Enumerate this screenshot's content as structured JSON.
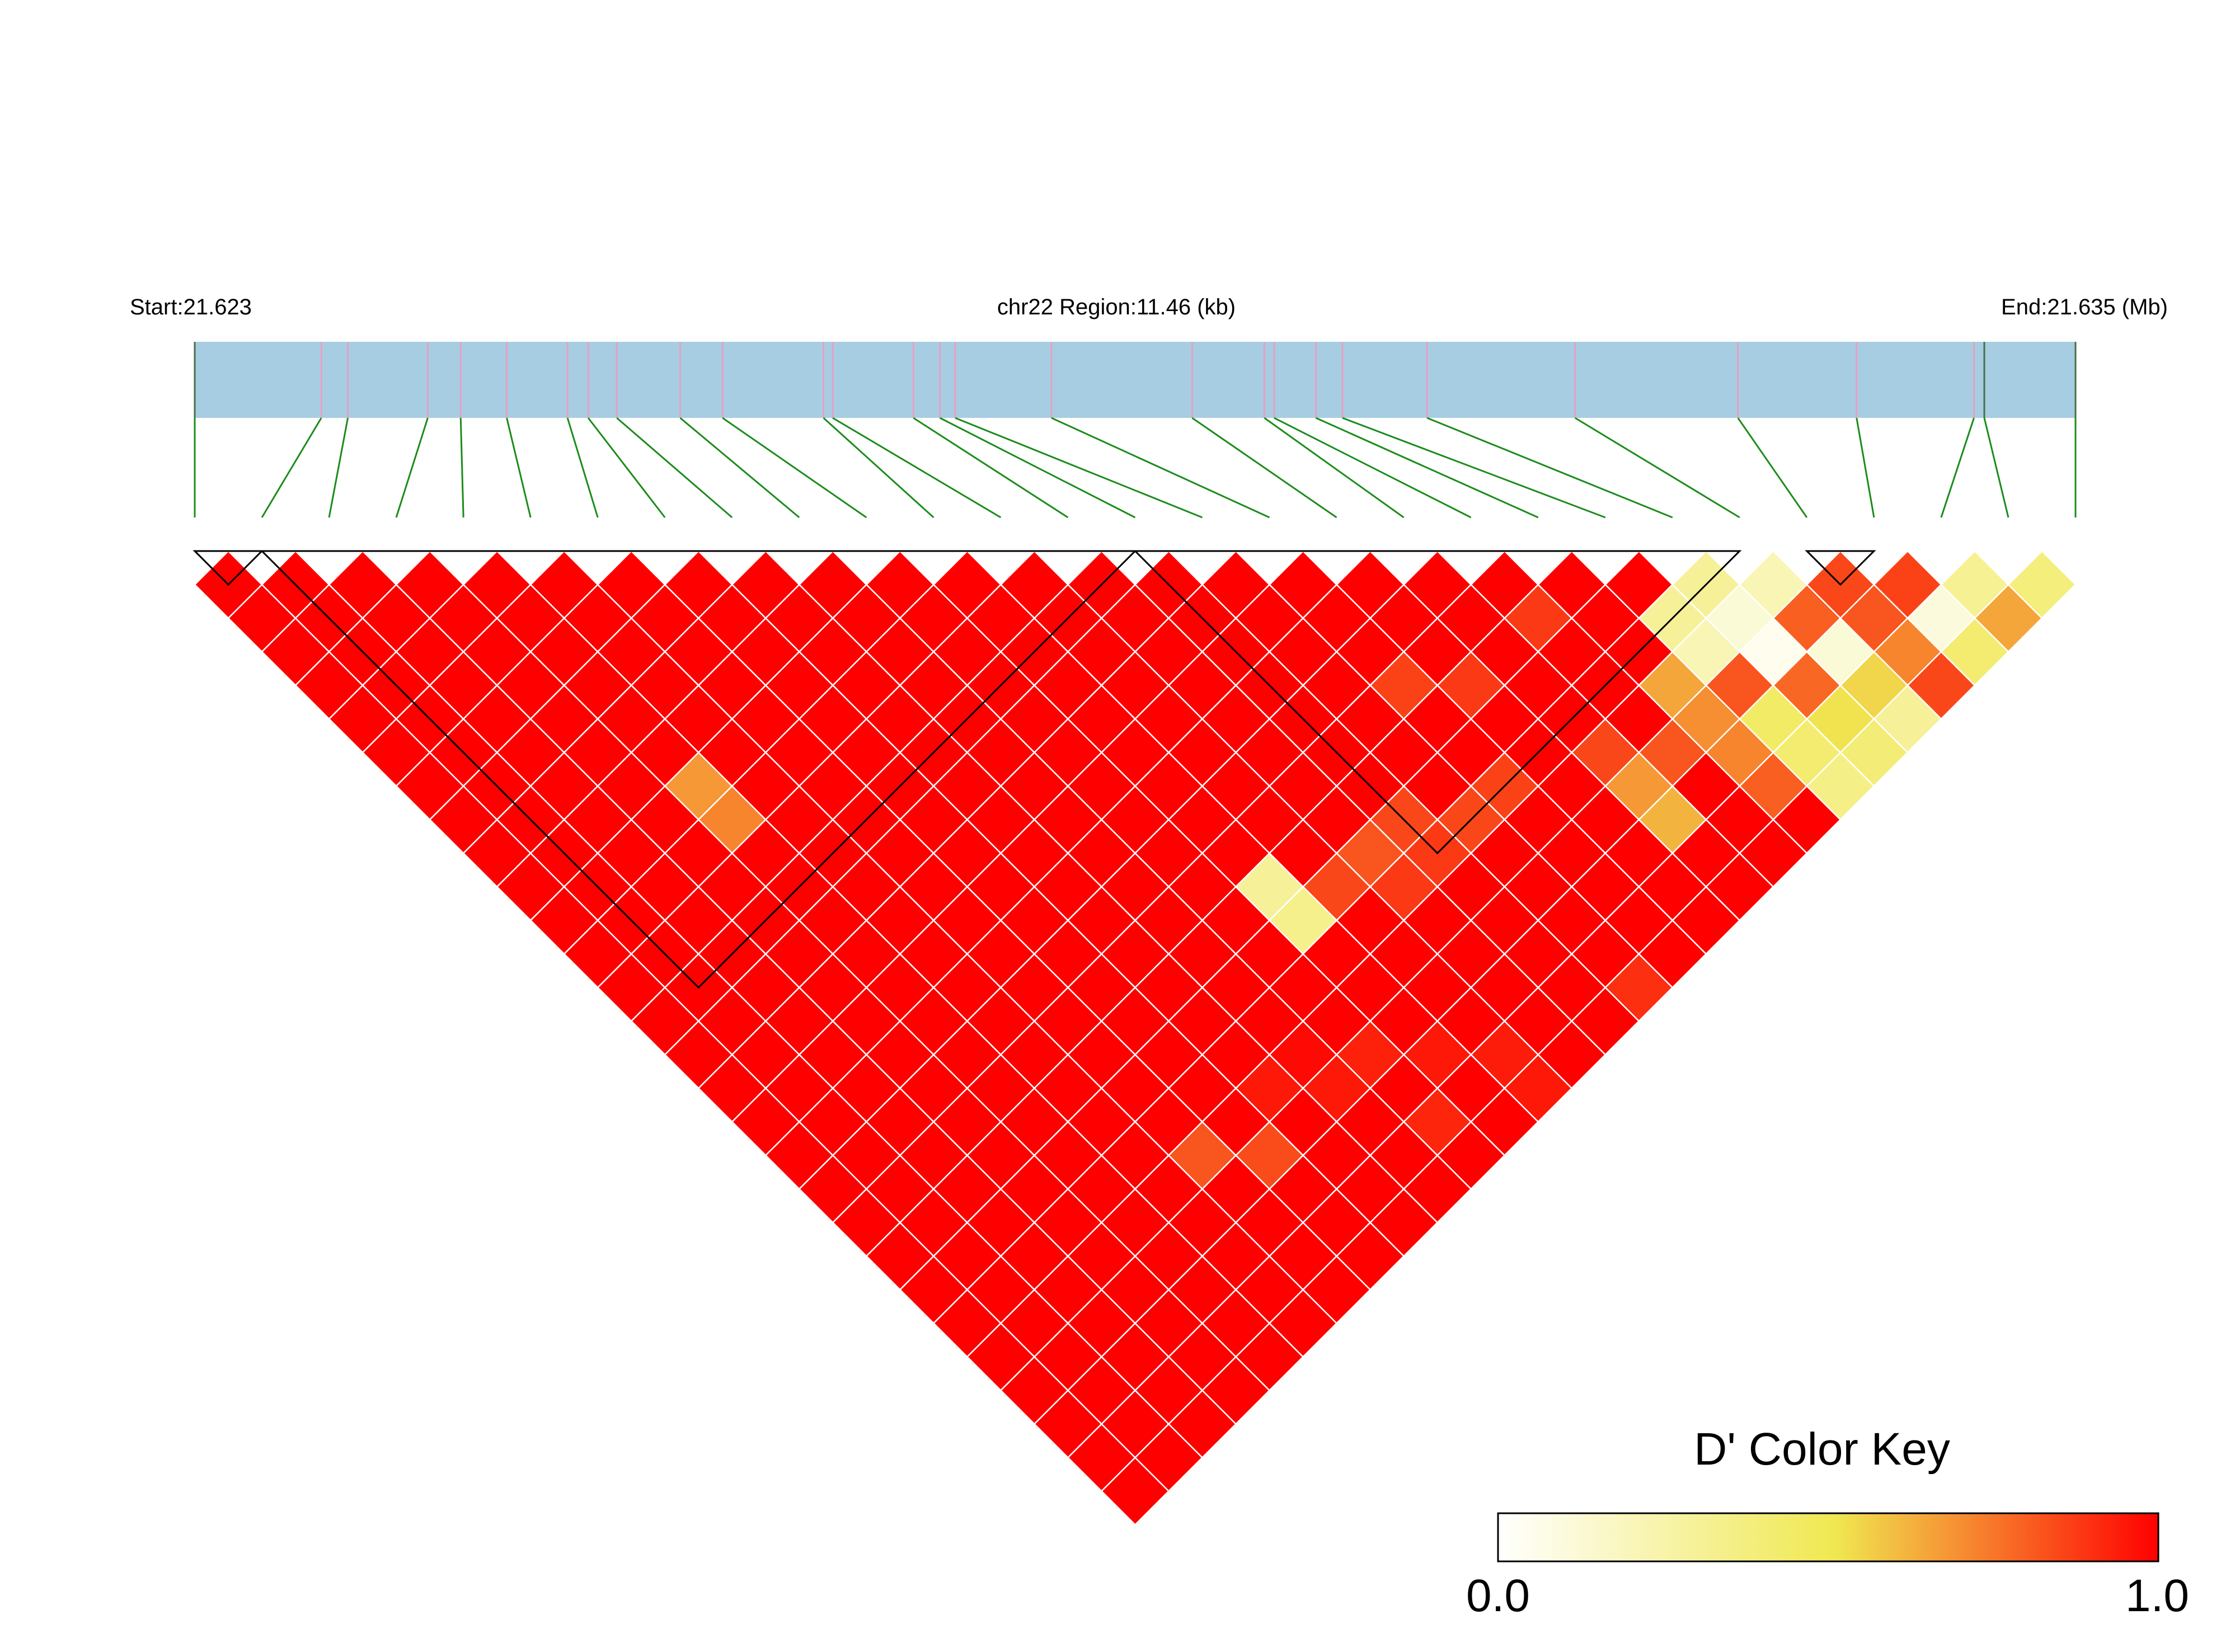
{
  "header": {
    "start_label": "Start:21.623",
    "region_label": "chr22 Region:11.46 (kb)",
    "end_label": "End:21.635 (Mb)"
  },
  "color_key": {
    "title": "D' Color Key",
    "min_label": "0.0",
    "max_label": "1.0"
  },
  "chart_data": {
    "type": "heatmap",
    "subtype": "LD triangle (D')",
    "chromosome": "chr22",
    "region_start_mb": 21.623,
    "region_end_mb": 21.635,
    "region_length_kb": 11.46,
    "n_snps": 29,
    "snp_relative_positions": [
      0,
      0.0673,
      0.0814,
      0.1239,
      0.1414,
      0.1659,
      0.1982,
      0.2092,
      0.2244,
      0.2581,
      0.2806,
      0.3343,
      0.3392,
      0.3821,
      0.3962,
      0.4043,
      0.4555,
      0.5303,
      0.5687,
      0.5739,
      0.5961,
      0.6102,
      0.6552,
      0.7339,
      0.8205,
      0.8836,
      0.946,
      0.9515,
      1.0
    ],
    "value_scale": {
      "min": 0.0,
      "max": 1.0,
      "colors": [
        "#ffffff",
        "#f0e851",
        "#ff0000"
      ]
    },
    "default_value": 1.0,
    "pair_values": [
      {
        "i": 4,
        "j": 11,
        "d": 0.68
      },
      {
        "i": 4,
        "j": 12,
        "d": 0.72
      },
      {
        "i": 8,
        "j": 24,
        "d": 0.95
      },
      {
        "i": 9,
        "j": 24,
        "d": 0.98
      },
      {
        "i": 9,
        "j": 25,
        "d": 0.95
      },
      {
        "i": 10,
        "j": 25,
        "d": 0.93
      },
      {
        "i": 10,
        "j": 27,
        "d": 0.92
      },
      {
        "i": 11,
        "j": 26,
        "d": 0.95
      },
      {
        "i": 12,
        "j": 27,
        "d": 0.94
      },
      {
        "i": 12,
        "j": 28,
        "d": 0.95
      },
      {
        "i": 11,
        "j": 21,
        "d": 0.3
      },
      {
        "i": 11,
        "j": 22,
        "d": 0.34
      },
      {
        "i": 12,
        "j": 22,
        "d": 0.85
      },
      {
        "i": 13,
        "j": 23,
        "d": 0.88
      },
      {
        "i": 14,
        "j": 22,
        "d": 0.85
      },
      {
        "i": 14,
        "j": 23,
        "d": 0.88
      },
      {
        "i": 15,
        "j": 23,
        "d": 0.85
      },
      {
        "i": 13,
        "j": 22,
        "d": 0.82
      },
      {
        "i": 16,
        "j": 23,
        "d": 0.86
      },
      {
        "i": 18,
        "j": 25,
        "d": 0.68
      },
      {
        "i": 18,
        "j": 26,
        "d": 0.62
      },
      {
        "i": 18,
        "j": 24,
        "d": 0.85
      },
      {
        "i": 19,
        "j": 25,
        "d": 0.82
      },
      {
        "i": 20,
        "j": 24,
        "d": 0.65
      },
      {
        "i": 20,
        "j": 25,
        "d": 0.7
      },
      {
        "i": 20,
        "j": 26,
        "d": 0.72
      },
      {
        "i": 20,
        "j": 27,
        "d": 0.8
      },
      {
        "i": 21,
        "j": 23,
        "d": 0.3
      },
      {
        "i": 21,
        "j": 24,
        "d": 0.22
      },
      {
        "i": 21,
        "j": 25,
        "d": 0.82
      },
      {
        "i": 21,
        "j": 26,
        "d": 0.45
      },
      {
        "i": 21,
        "j": 27,
        "d": 0.42
      },
      {
        "i": 21,
        "j": 28,
        "d": 0.35
      },
      {
        "i": 22,
        "j": 23,
        "d": 0.3
      },
      {
        "i": 22,
        "j": 24,
        "d": 0.12
      },
      {
        "i": 22,
        "j": 25,
        "d": 0.05
      },
      {
        "i": 22,
        "j": 26,
        "d": 0.78
      },
      {
        "i": 22,
        "j": 27,
        "d": 0.52
      },
      {
        "i": 22,
        "j": 28,
        "d": 0.4
      },
      {
        "i": 23,
        "j": 24,
        "d": 0.22
      },
      {
        "i": 23,
        "j": 25,
        "d": 0.8
      },
      {
        "i": 23,
        "j": 26,
        "d": 0.12
      },
      {
        "i": 23,
        "j": 27,
        "d": 0.55
      },
      {
        "i": 23,
        "j": 28,
        "d": 0.3
      },
      {
        "i": 24,
        "j": 25,
        "d": 0.85
      },
      {
        "i": 24,
        "j": 26,
        "d": 0.82
      },
      {
        "i": 24,
        "j": 27,
        "d": 0.72
      },
      {
        "i": 24,
        "j": 28,
        "d": 0.85
      },
      {
        "i": 25,
        "j": 26,
        "d": 0.86
      },
      {
        "i": 25,
        "j": 27,
        "d": 0.1
      },
      {
        "i": 25,
        "j": 28,
        "d": 0.42
      },
      {
        "i": 26,
        "j": 27,
        "d": 0.32
      },
      {
        "i": 26,
        "j": 28,
        "d": 0.65
      },
      {
        "i": 27,
        "j": 28,
        "d": 0.38
      },
      {
        "i": 6,
        "j": 24,
        "d": 0.82
      },
      {
        "i": 7,
        "j": 25,
        "d": 0.84
      },
      {
        "i": 15,
        "j": 28,
        "d": 0.9
      },
      {
        "i": 19,
        "j": 21,
        "d": 0.88
      },
      {
        "i": 17,
        "j": 21,
        "d": 0.88
      },
      {
        "i": 16,
        "j": 20,
        "d": 0.86
      }
    ],
    "blocks": [
      {
        "from": 0,
        "to": 1
      },
      {
        "from": 1,
        "to": 14
      },
      {
        "from": 14,
        "to": 23
      },
      {
        "from": 24,
        "to": 25
      }
    ]
  }
}
